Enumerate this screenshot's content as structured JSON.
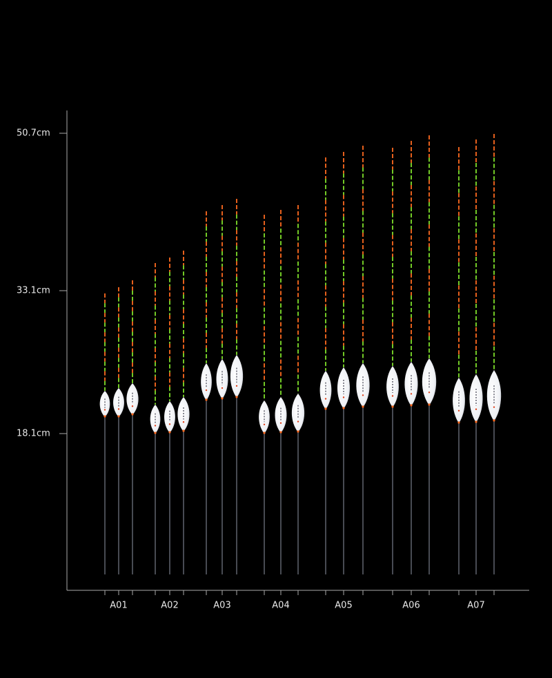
{
  "axis": {
    "ticks": [
      "50.7cm",
      "33.1cm",
      "18.1cm"
    ]
  },
  "groups": [
    "A01",
    "A02",
    "A03",
    "A04",
    "A05",
    "A06",
    "A07"
  ]
}
